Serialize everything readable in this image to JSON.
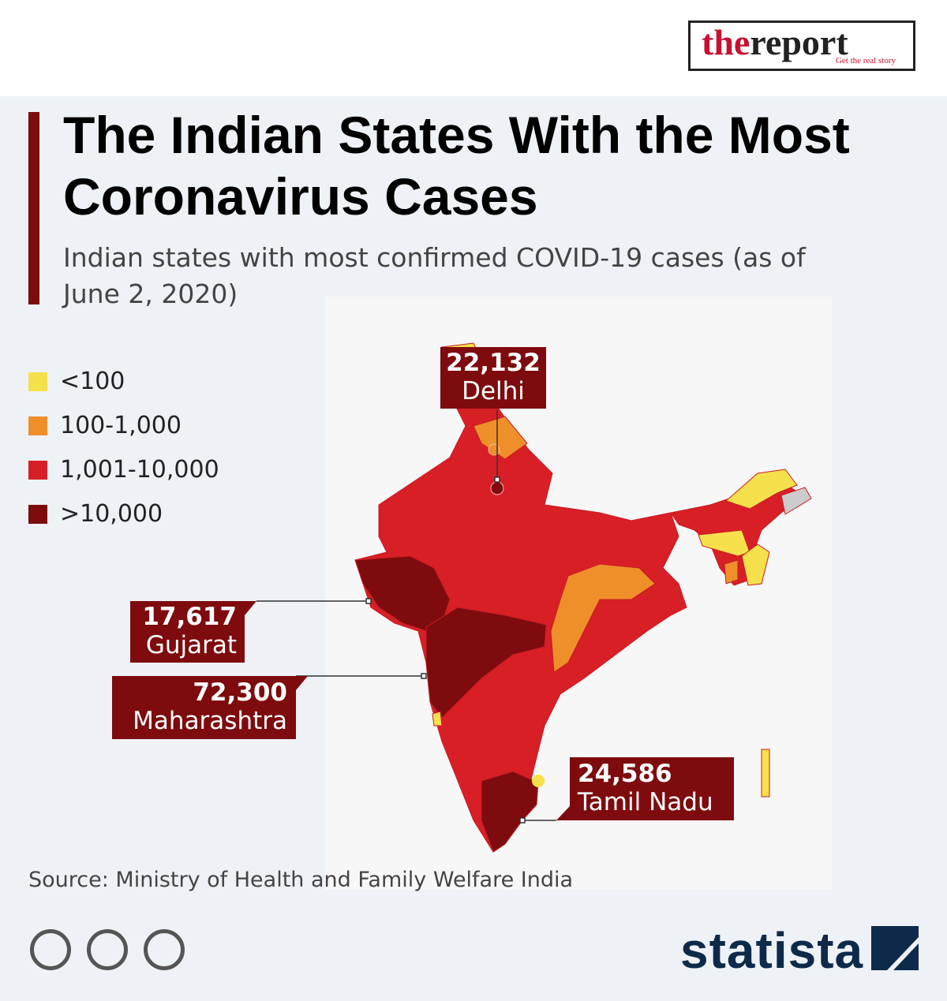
{
  "header": {
    "logo_the": "the",
    "logo_report": "report",
    "logo_tagline": "Get the real story"
  },
  "title": "The Indian States With the Most Coronavirus Cases",
  "subtitle": "Indian states with most confirmed COVID-19 cases (as of June 2, 2020)",
  "legend": [
    {
      "label": "<100",
      "color": "#f6e04c"
    },
    {
      "label": "100-1,000",
      "color": "#ef8f2a"
    },
    {
      "label": "1,001-10,000",
      "color": "#d81f26"
    },
    {
      "label": ">10,000",
      "color": "#7e0b0e"
    }
  ],
  "callouts": [
    {
      "value": "22,132",
      "label": "Delhi"
    },
    {
      "value": "17,617",
      "label": "Gujarat"
    },
    {
      "value": "72,300",
      "label": "Maharashtra"
    },
    {
      "value": "24,586",
      "label": "Tamil Nadu"
    }
  ],
  "source": "Source: Ministry of Health and Family Welfare India",
  "brand": "statista"
}
